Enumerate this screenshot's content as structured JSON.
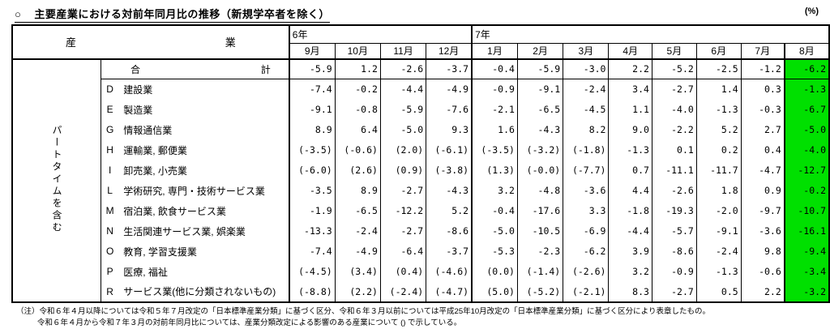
{
  "title": {
    "marker": "○",
    "text": "主要産業における対前年同月比の推移（新規学卒者を除く）",
    "unit": "(%)"
  },
  "colors": {
    "highlight_green": "#00e000"
  },
  "table": {
    "industry_header_left": "産",
    "industry_header_right": "業",
    "side_label": "パートタイムを含む",
    "year_groups": [
      {
        "label": "6年"
      },
      {
        "label": "7年"
      }
    ],
    "months": [
      "9月",
      "10月",
      "11月",
      "12月",
      "1月",
      "2月",
      "3月",
      "4月",
      "5月",
      "6月",
      "7月",
      "8月"
    ],
    "total_row": {
      "label_left": "合",
      "label_right": "計",
      "values": [
        "-5.9",
        "1.2",
        "-2.6",
        "-3.7",
        "-0.4",
        "-5.9",
        "-3.0",
        "2.2",
        "-5.2",
        "-2.5",
        "-1.2",
        "-6.2"
      ]
    },
    "rows": [
      {
        "code": "D",
        "name": "建設業",
        "values": [
          "-7.4",
          "-0.2",
          "-4.4",
          "-4.9",
          "-0.9",
          "-9.1",
          "-2.4",
          "3.4",
          "-2.7",
          "1.4",
          "0.3",
          "-1.3"
        ]
      },
      {
        "code": "E",
        "name": "製造業",
        "values": [
          "-9.1",
          "-0.8",
          "-5.9",
          "-7.6",
          "-2.1",
          "-6.5",
          "-4.5",
          "1.1",
          "-4.0",
          "-1.3",
          "-0.3",
          "-6.7"
        ]
      },
      {
        "code": "G",
        "name": "情報通信業",
        "values": [
          "8.9",
          "6.4",
          "-5.0",
          "9.3",
          "1.6",
          "-4.3",
          "8.2",
          "9.0",
          "-2.2",
          "5.2",
          "2.7",
          "-5.0"
        ]
      },
      {
        "code": "H",
        "name": "運輸業, 郵便業",
        "values": [
          "(-3.5)",
          "(-0.6)",
          "(2.0)",
          "(-6.1)",
          "(-3.5)",
          "(-3.2)",
          "(-1.8)",
          "-1.3",
          "0.1",
          "0.2",
          "0.4",
          "-4.0"
        ]
      },
      {
        "code": "I",
        "name": "卸売業, 小売業",
        "values": [
          "(-6.0)",
          "(2.6)",
          "(0.9)",
          "(-3.8)",
          "(1.3)",
          "(-0.0)",
          "(-7.7)",
          "0.7",
          "-11.1",
          "-11.7",
          "-4.7",
          "-12.7"
        ]
      },
      {
        "code": "L",
        "name": "学術研究, 専門・技術サービス業",
        "values": [
          "-3.5",
          "8.9",
          "-2.7",
          "-4.3",
          "3.2",
          "-4.8",
          "-3.6",
          "4.4",
          "-2.6",
          "1.8",
          "0.9",
          "-0.2"
        ]
      },
      {
        "code": "M",
        "name": "宿泊業, 飲食サービス業",
        "values": [
          "-1.9",
          "-6.5",
          "-12.2",
          "5.2",
          "-0.4",
          "-17.6",
          "3.3",
          "-1.8",
          "-19.3",
          "-2.0",
          "-9.7",
          "-10.7"
        ]
      },
      {
        "code": "N",
        "name": "生活関連サービス業, 娯楽業",
        "values": [
          "-13.3",
          "-2.4",
          "-2.7",
          "-8.6",
          "-5.0",
          "-10.5",
          "-6.9",
          "-4.4",
          "-5.7",
          "-9.1",
          "-3.6",
          "-16.1"
        ]
      },
      {
        "code": "O",
        "name": "教育, 学習支援業",
        "values": [
          "-7.4",
          "-4.9",
          "-6.4",
          "-3.7",
          "-5.3",
          "-2.3",
          "-6.2",
          "3.9",
          "-8.6",
          "-2.4",
          "9.8",
          "-9.4"
        ]
      },
      {
        "code": "P",
        "name": "医療, 福祉",
        "values": [
          "(-4.5)",
          "(3.4)",
          "(0.4)",
          "(-4.6)",
          "(0.0)",
          "(-1.4)",
          "(-2.6)",
          "3.2",
          "-0.9",
          "-1.3",
          "-0.6",
          "-3.4"
        ]
      },
      {
        "code": "R",
        "name": "サービス業(他に分類されないもの)",
        "values": [
          "(-8.8)",
          "(2.2)",
          "(-2.4)",
          "(-4.7)",
          "(5.0)",
          "(-5.2)",
          "(-2.1)",
          "8.3",
          "-2.7",
          "0.5",
          "2.2",
          "-3.2"
        ]
      }
    ]
  },
  "notes": {
    "line1": "（注）令和６年４月以降については令和５年７月改定の「日本標準産業分類」に基づく区分、令和６年３月以前については平成25年10月改定の「日本標準産業分類」に基づく区分により表章したもの。",
    "line2": "令和６年４月から令和７年３月の対前年同月比については、産業分類改定による影響のある産業について () で示している。"
  }
}
